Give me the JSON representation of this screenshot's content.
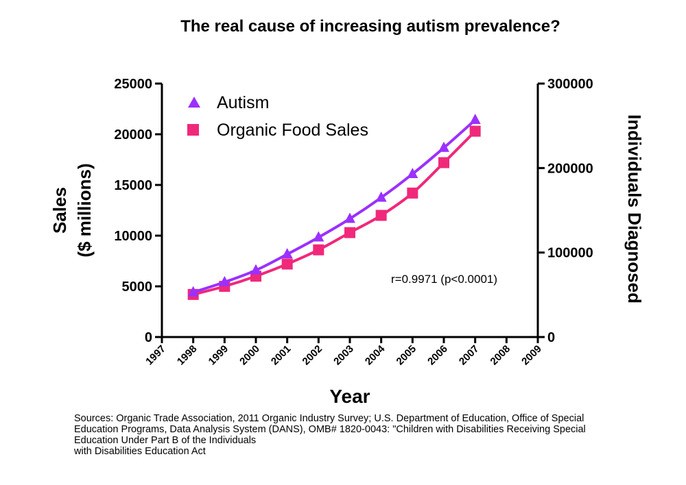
{
  "chart_data": {
    "type": "line",
    "title": "The real cause of increasing autism prevalence?",
    "xlabel": "Year",
    "ylabel_left": [
      "Sales",
      "($ millions)"
    ],
    "ylabel_right": "Individuals Diagnosed",
    "x_ticks": [
      "1997",
      "1998",
      "1999",
      "2000",
      "2001",
      "2002",
      "2003",
      "2004",
      "2005",
      "2006",
      "2007",
      "2008",
      "2009"
    ],
    "xlim": [
      1997,
      2009
    ],
    "ylim_left": [
      0,
      25000
    ],
    "ylim_right": [
      0,
      300000
    ],
    "y_ticks_left": [
      "0",
      "5000",
      "10000",
      "15000",
      "20000",
      "25000"
    ],
    "y_ticks_right": [
      "0",
      "100000",
      "200000",
      "300000"
    ],
    "series": [
      {
        "name": "Autism",
        "axis": "right",
        "marker": "triangle",
        "color": "#9b30ff",
        "x": [
          1998,
          1999,
          2000,
          2001,
          2002,
          2003,
          2004,
          2005,
          2006,
          2007
        ],
        "values": [
          53000,
          65000,
          79000,
          98000,
          118000,
          140000,
          165000,
          193000,
          224000,
          257000
        ]
      },
      {
        "name": "Organic Food Sales",
        "axis": "left",
        "marker": "square",
        "color": "#f0287a",
        "x": [
          1998,
          1999,
          2000,
          2001,
          2002,
          2003,
          2004,
          2005,
          2006,
          2007
        ],
        "values": [
          4200,
          5000,
          6000,
          7200,
          8600,
          10300,
          12000,
          14200,
          17200,
          20300
        ]
      }
    ],
    "annotation": "r=0.9971 (p<0.0001)",
    "legend_position": "top-left"
  },
  "sources": [
    "Sources: Organic Trade Association,  2011 Organic Industry Survey; U.S. Department of Education, Office of Special",
    "Education Programs, Data Analysis System (DANS), OMB# 1820-0043: \"Children with Disabilities Receiving Special",
    "Education Under Part B of the Individuals",
    "with Disabilities Education Act"
  ]
}
